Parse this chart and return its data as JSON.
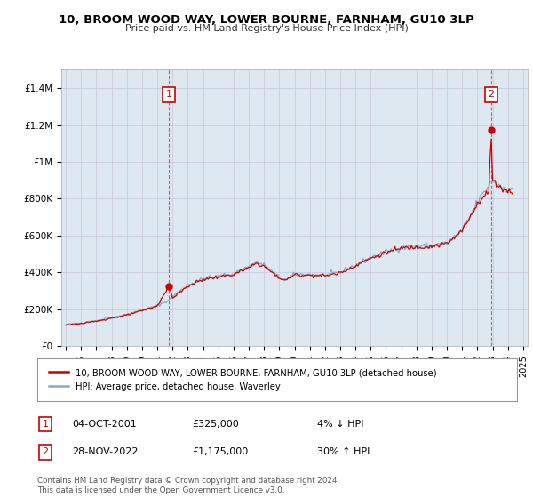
{
  "title": "10, BROOM WOOD WAY, LOWER BOURNE, FARNHAM, GU10 3LP",
  "subtitle": "Price paid vs. HM Land Registry's House Price Index (HPI)",
  "ylim": [
    0,
    1500000
  ],
  "yticks": [
    0,
    200000,
    400000,
    600000,
    800000,
    1000000,
    1200000,
    1400000
  ],
  "ytick_labels": [
    "£0",
    "£200K",
    "£400K",
    "£600K",
    "£800K",
    "£1M",
    "£1.2M",
    "£1.4M"
  ],
  "line1_color": "#cc0000",
  "line2_color": "#88aacc",
  "vline_color": "#cc0000",
  "grid_color": "#ccccdd",
  "plot_bg_color": "#dde8f0",
  "bg_color": "#ffffff",
  "legend_label1": "10, BROOM WOOD WAY, LOWER BOURNE, FARNHAM, GU10 3LP (detached house)",
  "legend_label2": "HPI: Average price, detached house, Waverley",
  "annotation1_label": "1",
  "annotation1_date": "04-OCT-2001",
  "annotation1_price": "£325,000",
  "annotation1_hpi": "4% ↓ HPI",
  "annotation2_label": "2",
  "annotation2_date": "28-NOV-2022",
  "annotation2_price": "£1,175,000",
  "annotation2_hpi": "30% ↑ HPI",
  "footer": "Contains HM Land Registry data © Crown copyright and database right 2024.\nThis data is licensed under the Open Government Licence v3.0.",
  "transaction1_x": 2001.75,
  "transaction1_y": 325000,
  "transaction2_x": 2022.9,
  "transaction2_y": 1175000,
  "xlim": [
    1994.7,
    2025.3
  ],
  "xtick_years": [
    1995,
    1996,
    1997,
    1998,
    1999,
    2000,
    2001,
    2002,
    2003,
    2004,
    2005,
    2006,
    2007,
    2008,
    2009,
    2010,
    2011,
    2012,
    2013,
    2014,
    2015,
    2016,
    2017,
    2018,
    2019,
    2020,
    2021,
    2022,
    2023,
    2024,
    2025
  ]
}
